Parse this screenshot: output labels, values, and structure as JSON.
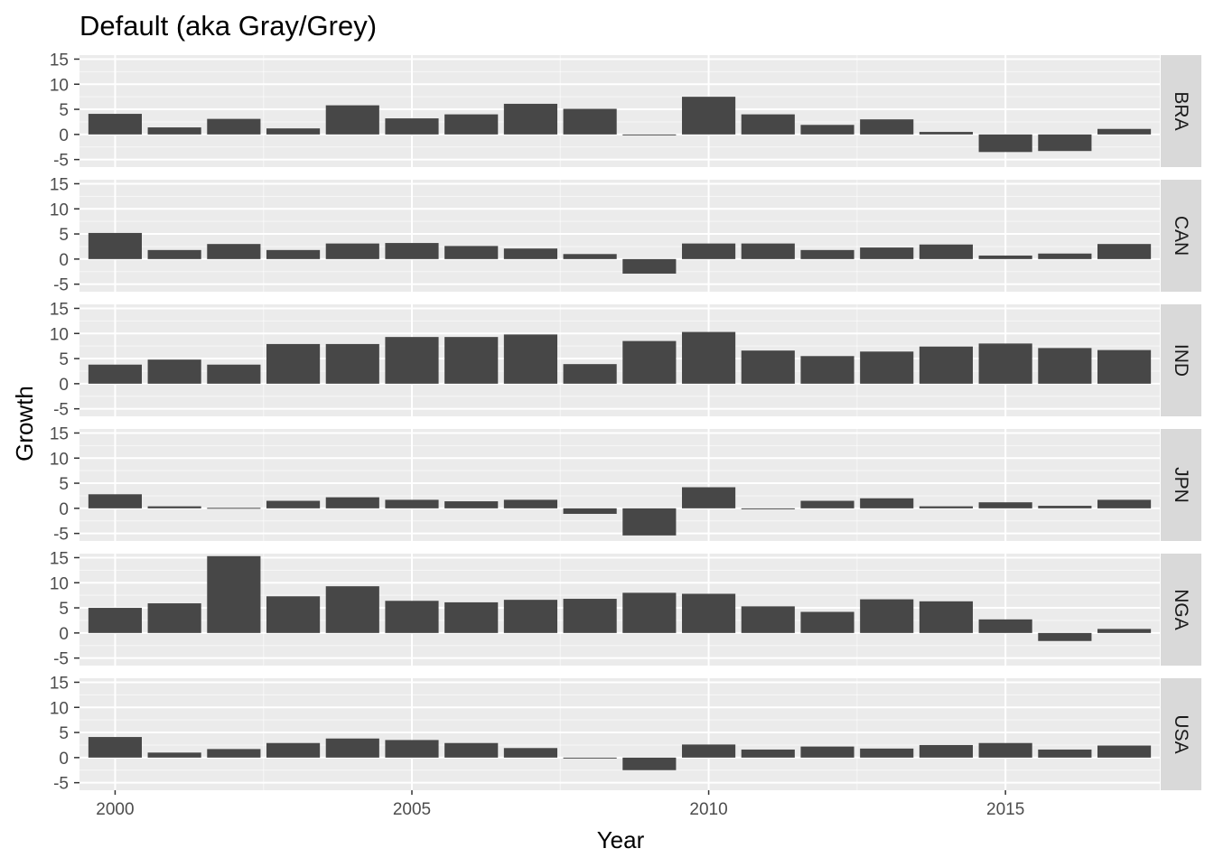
{
  "chart_data": {
    "type": "bar",
    "title": "Default (aka Gray/Grey)",
    "xlabel": "Year",
    "ylabel": "Growth",
    "x": [
      2000,
      2001,
      2002,
      2003,
      2004,
      2005,
      2006,
      2007,
      2008,
      2009,
      2010,
      2011,
      2012,
      2013,
      2014,
      2015,
      2016,
      2017
    ],
    "xticks": [
      "2000",
      "2005",
      "2010",
      "2015"
    ],
    "yticks": [
      "-5",
      "0",
      "5",
      "10",
      "15"
    ],
    "ylim": [
      -6.5,
      15.8
    ],
    "grid": true,
    "facets": [
      {
        "label": "BRA",
        "values": [
          4.1,
          1.4,
          3.1,
          1.2,
          5.8,
          3.2,
          4.0,
          6.1,
          5.1,
          -0.1,
          7.5,
          4.0,
          1.9,
          3.0,
          0.5,
          -3.5,
          -3.3,
          1.1
        ]
      },
      {
        "label": "CAN",
        "values": [
          5.2,
          1.8,
          3.0,
          1.8,
          3.1,
          3.2,
          2.6,
          2.1,
          1.0,
          -2.9,
          3.1,
          3.1,
          1.8,
          2.3,
          2.9,
          0.7,
          1.1,
          3.0
        ]
      },
      {
        "label": "IND",
        "values": [
          3.8,
          4.8,
          3.8,
          7.9,
          7.9,
          9.3,
          9.3,
          9.8,
          3.9,
          8.5,
          10.3,
          6.6,
          5.5,
          6.4,
          7.4,
          8.0,
          7.1,
          6.7
        ]
      },
      {
        "label": "JPN",
        "values": [
          2.8,
          0.4,
          0.1,
          1.5,
          2.2,
          1.7,
          1.4,
          1.7,
          -1.1,
          -5.4,
          4.2,
          -0.1,
          1.5,
          2.0,
          0.4,
          1.2,
          0.5,
          1.7
        ]
      },
      {
        "label": "NGA",
        "values": [
          5.0,
          5.9,
          15.3,
          7.3,
          9.3,
          6.4,
          6.1,
          6.6,
          6.8,
          8.0,
          7.8,
          5.3,
          4.2,
          6.7,
          6.3,
          2.7,
          -1.6,
          0.8
        ]
      },
      {
        "label": "USA",
        "values": [
          4.1,
          1.0,
          1.7,
          2.9,
          3.8,
          3.5,
          2.9,
          1.9,
          -0.1,
          -2.5,
          2.6,
          1.6,
          2.2,
          1.8,
          2.5,
          2.9,
          1.6,
          2.4
        ]
      }
    ],
    "colors": {
      "bar": "#474747",
      "panel_background": "#ebebeb",
      "grid_major": "#ffffff",
      "strip_background": "#d9d9d9",
      "tick_text": "#4d4d4d"
    }
  }
}
